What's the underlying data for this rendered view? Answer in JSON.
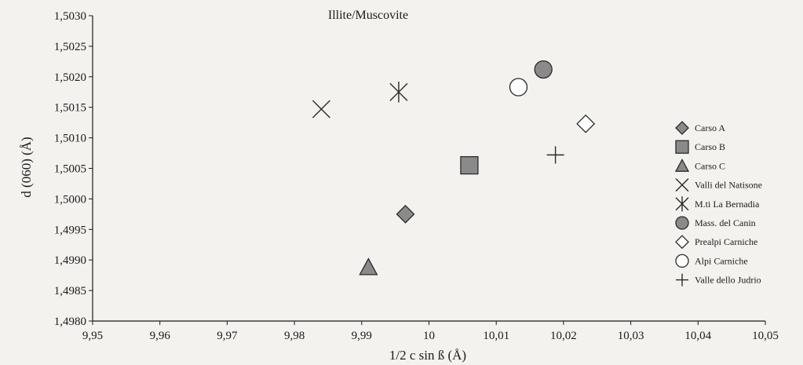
{
  "chart_data": {
    "type": "scatter",
    "title": "Illite/Muscovite",
    "xlabel": "1/2 c sin ß (Å)",
    "ylabel": "d (060) (Å)",
    "xlim": [
      9.95,
      10.05
    ],
    "ylim": [
      1.498,
      1.503
    ],
    "x_ticks": [
      9.95,
      9.96,
      9.97,
      9.98,
      9.99,
      10.0,
      10.01,
      10.02,
      10.03,
      10.04,
      10.05
    ],
    "x_tick_labels": [
      "9,95",
      "9,96",
      "9,97",
      "9,98",
      "9,99",
      "10",
      "10,01",
      "10,02",
      "10,03",
      "10,04",
      "10,05"
    ],
    "y_ticks": [
      1.498,
      1.4985,
      1.499,
      1.4995,
      1.5,
      1.5005,
      1.501,
      1.5015,
      1.502,
      1.5025,
      1.503
    ],
    "y_tick_labels": [
      "1,4980",
      "1,4985",
      "1,4990",
      "1,4995",
      "1,5000",
      "1,5005",
      "1,5010",
      "1,5015",
      "1,5020",
      "1,5025",
      "1,5030"
    ],
    "grid": false,
    "legend_position": "right",
    "series": [
      {
        "name": "Carso A",
        "marker": "diamond-filled",
        "x": 9.9965,
        "y": 1.49975
      },
      {
        "name": "Carso B",
        "marker": "square-filled",
        "x": 10.006,
        "y": 1.50055
      },
      {
        "name": "Carso C",
        "marker": "triangle-filled",
        "x": 9.991,
        "y": 1.49888
      },
      {
        "name": "Valli del Natisone",
        "marker": "x-cross",
        "x": 9.984,
        "y": 1.50147
      },
      {
        "name": "M.ti La Bernadia",
        "marker": "asterisk",
        "x": 9.9955,
        "y": 1.50175
      },
      {
        "name": "Mass. del Canin",
        "marker": "circle-filled",
        "x": 10.017,
        "y": 1.50212
      },
      {
        "name": "Prealpi Carniche",
        "marker": "diamond-open",
        "x": 10.0233,
        "y": 1.50123
      },
      {
        "name": "Alpi Carniche",
        "marker": "circle-open",
        "x": 10.0133,
        "y": 1.50183
      },
      {
        "name": "Valle dello Judrio",
        "marker": "plus",
        "x": 10.0188,
        "y": 1.50072
      }
    ]
  },
  "colors": {
    "background": "#f4f2ef",
    "marker_fill": "#8a8a8a",
    "marker_stroke": "#2a2a2a",
    "open_fill": "#ffffff"
  }
}
